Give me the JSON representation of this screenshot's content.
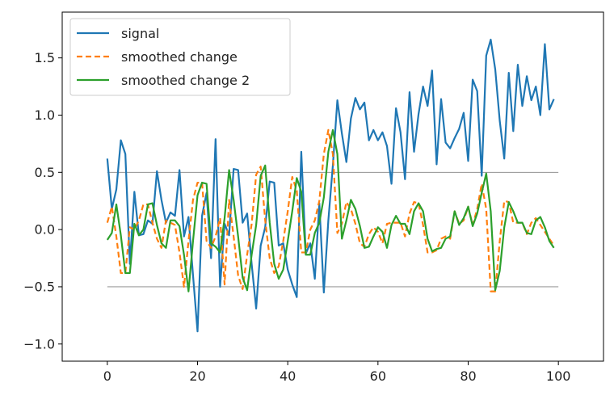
{
  "chart_data": {
    "type": "line",
    "title": "",
    "xlabel": "",
    "ylabel": "",
    "xlim": [
      -10,
      110
    ],
    "ylim": [
      -1.15,
      1.9
    ],
    "x_ticks": [
      0,
      20,
      40,
      60,
      80,
      100
    ],
    "x_tick_labels": [
      "0",
      "20",
      "40",
      "60",
      "80",
      "100"
    ],
    "y_ticks": [
      -1.0,
      -0.5,
      0.0,
      0.5,
      1.0,
      1.5
    ],
    "y_tick_labels": [
      "−1.0",
      "−0.5",
      "0.0",
      "0.5",
      "1.0",
      "1.5"
    ],
    "grid": false,
    "legend_position": "upper-left",
    "reference_lines": [
      {
        "y": 0.5,
        "x_from": 0,
        "x_to": 100,
        "color": "#808080"
      },
      {
        "y": -0.5,
        "x_from": 0,
        "x_to": 100,
        "color": "#808080"
      }
    ],
    "x": [
      0,
      1,
      2,
      3,
      4,
      5,
      6,
      7,
      8,
      9,
      10,
      11,
      12,
      13,
      14,
      15,
      16,
      17,
      18,
      19,
      20,
      21,
      22,
      23,
      24,
      25,
      26,
      27,
      28,
      29,
      30,
      31,
      32,
      33,
      34,
      35,
      36,
      37,
      38,
      39,
      40,
      41,
      42,
      43,
      44,
      45,
      46,
      47,
      48,
      49,
      50,
      51,
      52,
      53,
      54,
      55,
      56,
      57,
      58,
      59,
      60,
      61,
      62,
      63,
      64,
      65,
      66,
      67,
      68,
      69,
      70,
      71,
      72,
      73,
      74,
      75,
      76,
      77,
      78,
      79,
      80,
      81,
      82,
      83,
      84,
      85,
      86,
      87,
      88,
      89,
      90,
      91,
      92,
      93,
      94,
      95,
      96,
      97,
      98,
      99
    ],
    "series": [
      {
        "name": "signal",
        "color": "#1f77b4",
        "dash": "solid",
        "values": [
          0.62,
          0.18,
          0.35,
          0.78,
          0.66,
          -0.3,
          0.33,
          -0.05,
          -0.04,
          0.08,
          0.05,
          0.51,
          0.26,
          0.06,
          0.15,
          0.12,
          0.52,
          -0.06,
          0.11,
          -0.4,
          -0.89,
          0.12,
          0.32,
          -0.25,
          0.79,
          -0.5,
          0.05,
          -0.05,
          0.53,
          0.52,
          0.06,
          0.14,
          -0.3,
          -0.69,
          -0.14,
          0.02,
          0.42,
          0.41,
          -0.14,
          -0.12,
          -0.35,
          -0.48,
          -0.59,
          0.68,
          -0.21,
          -0.12,
          -0.43,
          0.23,
          -0.55,
          0.08,
          0.56,
          1.13,
          0.84,
          0.59,
          0.97,
          1.15,
          1.05,
          1.11,
          0.78,
          0.87,
          0.78,
          0.85,
          0.73,
          0.4,
          1.06,
          0.85,
          0.44,
          1.2,
          0.68,
          1.01,
          1.25,
          1.08,
          1.39,
          0.57,
          1.14,
          0.76,
          0.71,
          0.8,
          0.88,
          1.02,
          0.6,
          1.31,
          1.21,
          0.47,
          1.52,
          1.66,
          1.4,
          0.95,
          0.62,
          1.37,
          0.86,
          1.44,
          1.08,
          1.34,
          1.13,
          1.25,
          1.0,
          1.62,
          1.05,
          1.14
        ]
      },
      {
        "name": "smoothed change",
        "color": "#ff7f0e",
        "dash": "dashed",
        "values": [
          0.06,
          0.2,
          -0.06,
          -0.38,
          -0.38,
          0.02,
          0.0,
          0.08,
          0.22,
          0.22,
          0.06,
          -0.08,
          -0.16,
          0.08,
          0.06,
          0.04,
          -0.2,
          -0.5,
          -0.1,
          0.26,
          0.41,
          0.41,
          -0.1,
          -0.16,
          -0.06,
          0.1,
          -0.48,
          0.26,
          -0.06,
          -0.4,
          -0.52,
          -0.22,
          0.05,
          0.48,
          0.55,
          0.08,
          -0.25,
          -0.38,
          -0.32,
          -0.1,
          0.16,
          0.46,
          0.34,
          -0.2,
          -0.2,
          0.0,
          0.08,
          0.25,
          0.66,
          0.87,
          0.66,
          -0.03,
          0.05,
          0.24,
          0.18,
          0.05,
          -0.12,
          -0.15,
          -0.04,
          0.02,
          -0.02,
          -0.12,
          0.05,
          0.06,
          0.06,
          0.06,
          -0.06,
          0.14,
          0.24,
          0.23,
          0.04,
          -0.2,
          -0.2,
          -0.18,
          -0.08,
          -0.06,
          -0.08,
          0.16,
          0.05,
          0.08,
          0.2,
          0.04,
          0.18,
          0.4,
          0.18,
          -0.54,
          -0.54,
          -0.1,
          0.25,
          0.24,
          0.06,
          0.06,
          0.06,
          -0.04,
          0.06,
          0.1,
          0.04,
          -0.02,
          -0.08,
          -0.14
        ]
      },
      {
        "name": "smoothed change 2",
        "color": "#2ca02c",
        "dash": "solid",
        "values": [
          -0.09,
          -0.03,
          0.22,
          -0.05,
          -0.38,
          -0.38,
          0.05,
          -0.05,
          0.0,
          0.22,
          0.23,
          0.04,
          -0.12,
          -0.16,
          0.08,
          0.08,
          0.03,
          -0.22,
          -0.54,
          -0.1,
          0.3,
          0.41,
          0.4,
          -0.12,
          -0.15,
          -0.2,
          0.1,
          0.52,
          0.26,
          -0.06,
          -0.42,
          -0.53,
          -0.22,
          0.04,
          0.47,
          0.56,
          0.06,
          -0.3,
          -0.43,
          -0.35,
          -0.1,
          0.16,
          0.45,
          0.33,
          -0.22,
          -0.22,
          -0.03,
          0.06,
          0.28,
          0.68,
          0.87,
          0.66,
          -0.08,
          0.08,
          0.26,
          0.18,
          0.03,
          -0.16,
          -0.15,
          -0.06,
          0.02,
          -0.02,
          -0.16,
          0.04,
          0.12,
          0.05,
          0.05,
          -0.04,
          0.16,
          0.23,
          0.16,
          -0.08,
          -0.19,
          -0.17,
          -0.16,
          -0.08,
          -0.06,
          0.16,
          0.04,
          0.1,
          0.2,
          0.03,
          0.14,
          0.32,
          0.49,
          0.16,
          -0.53,
          -0.36,
          0.02,
          0.24,
          0.16,
          0.06,
          0.06,
          -0.03,
          -0.04,
          0.08,
          0.11,
          0.02,
          -0.1,
          -0.16
        ]
      }
    ]
  }
}
